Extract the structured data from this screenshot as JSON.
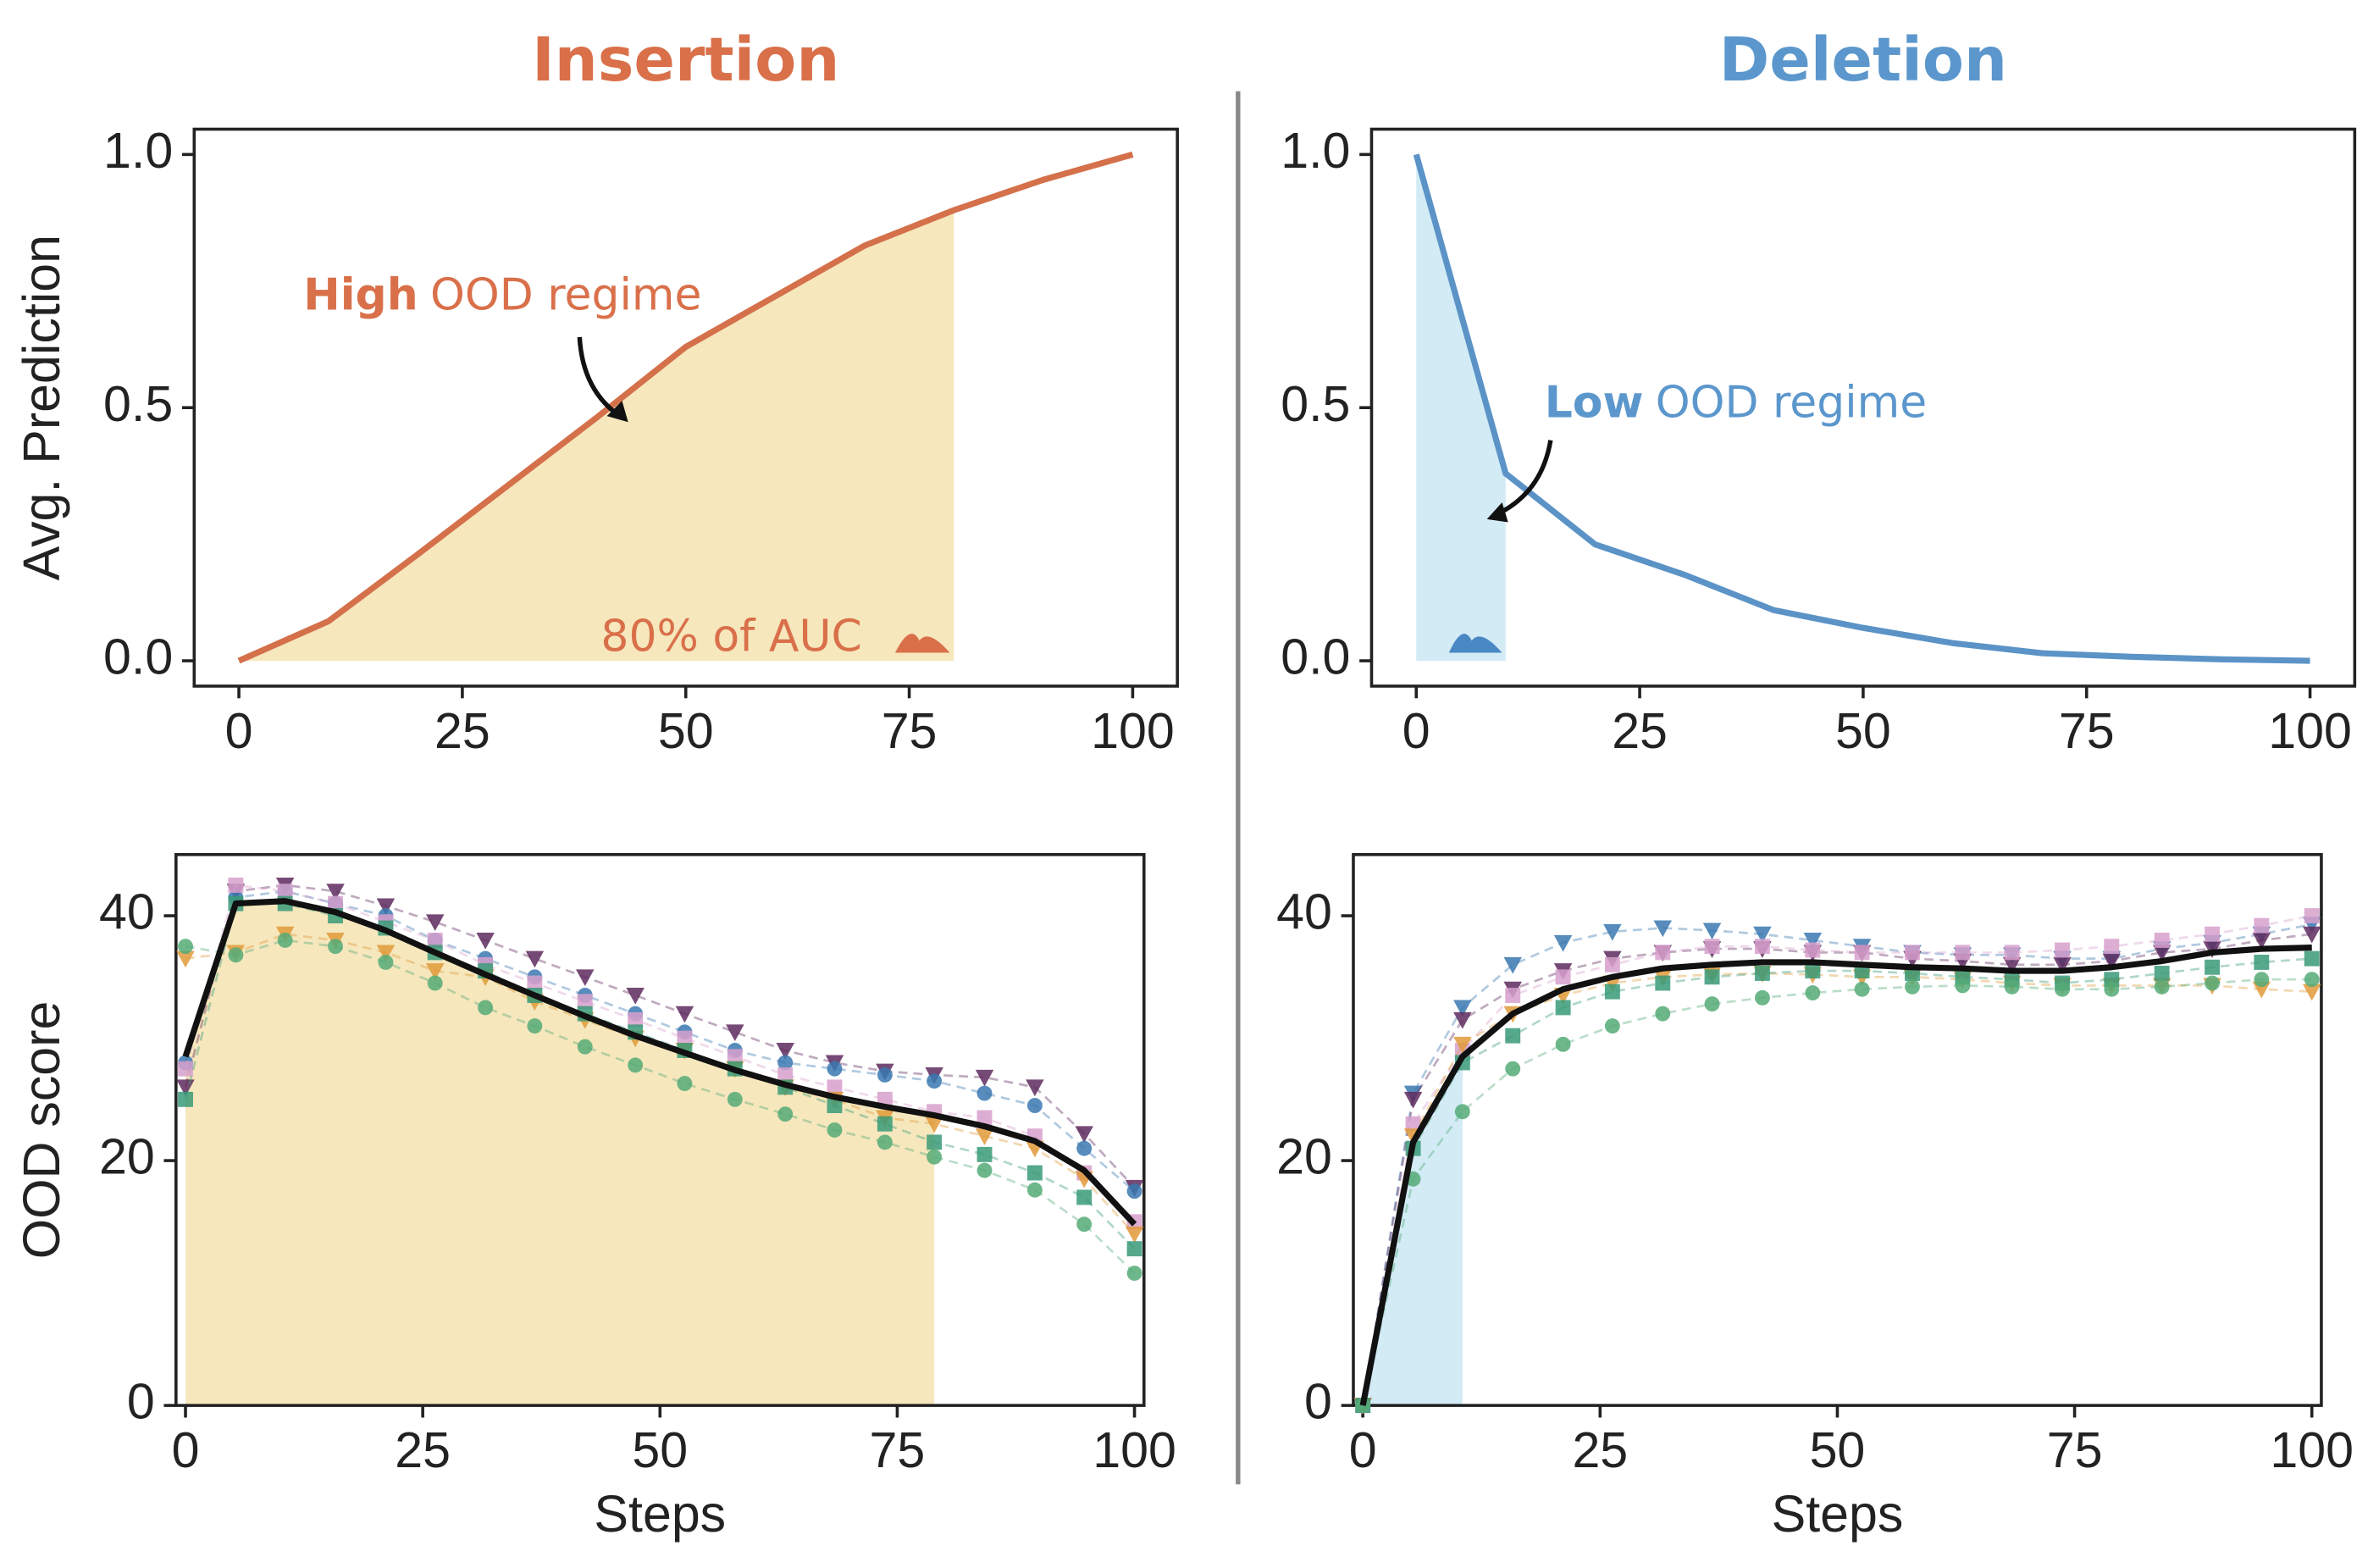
{
  "chart_data": [
    {
      "type": "line",
      "title": "Insertion",
      "title_color": "#d9704a",
      "ylabel": "Avg. Prediction",
      "x": [
        0,
        10,
        20,
        30,
        40,
        50,
        60,
        70,
        80,
        90,
        100
      ],
      "series": [
        {
          "color": "#d4704a",
          "values": [
            0,
            0.078,
            0.21,
            0.345,
            0.48,
            0.62,
            0.72,
            0.82,
            0.89,
            0.95,
            1.0
          ],
          "dashed": false
        }
      ],
      "shade": {
        "xlim": [
          0,
          80
        ],
        "color": "#f6e7bd"
      },
      "annotation": {
        "bold": "High",
        "text": "OOD regime",
        "color": "#d9704a"
      },
      "auc_label": "80% of AUC",
      "xlim": [
        -5,
        105
      ],
      "ylim": [
        -0.05,
        1.05
      ],
      "xticks": [
        0,
        25,
        50,
        75,
        100
      ],
      "yticks": [
        {
          "value": 0,
          "label": "0.0"
        },
        {
          "value": 0.5,
          "label": "0.5"
        },
        {
          "value": 1,
          "label": "1.0"
        }
      ]
    },
    {
      "type": "line",
      "title": "Deletion",
      "title_color": "#5b97cc",
      "x": [
        0,
        10,
        20,
        30,
        40,
        50,
        60,
        70,
        80,
        90,
        100
      ],
      "series": [
        {
          "color": "#5b93c7",
          "values": [
            1.0,
            0.37,
            0.23,
            0.17,
            0.1,
            0.065,
            0.035,
            0.015,
            0.008,
            0.003,
            0.0
          ],
          "dashed": false
        }
      ],
      "shade": {
        "xlim": [
          0,
          10
        ],
        "color": "#d2ebf5"
      },
      "annotation": {
        "bold": "Low",
        "text": "OOD regime",
        "color": "#5b97cc"
      },
      "xlim": [
        -5,
        105
      ],
      "ylim": [
        -0.05,
        1.05
      ],
      "xticks": [
        0,
        25,
        50,
        75,
        100
      ],
      "yticks": [
        {
          "value": 0,
          "label": "0.0"
        },
        {
          "value": 0.5,
          "label": "0.5"
        },
        {
          "value": 1,
          "label": "1.0"
        }
      ]
    },
    {
      "type": "line",
      "ylabel": "OOD score",
      "xlabel": "Steps",
      "x": [
        0,
        5.3,
        10.5,
        15.8,
        21.1,
        26.3,
        31.6,
        36.8,
        42.1,
        47.4,
        52.6,
        57.9,
        63.2,
        68.4,
        73.7,
        78.9,
        84.2,
        89.5,
        94.7,
        100
      ],
      "series": [
        {
          "color": "#5e2a5e",
          "marker": "tri",
          "dashed": true,
          "values": [
            26,
            42,
            42.5,
            42,
            40.8,
            39.5,
            38,
            36.5,
            35,
            33.5,
            32,
            30.5,
            29,
            28,
            27.3,
            27,
            26.8,
            26,
            22.2,
            17.8
          ]
        },
        {
          "color": "#3a78b0",
          "marker": "circle",
          "dashed": true,
          "values": [
            28,
            41.5,
            42,
            41,
            40,
            38,
            36.5,
            35,
            33.5,
            32,
            30.5,
            29,
            28,
            27.5,
            27,
            26.5,
            25.5,
            24.5,
            21,
            17.5
          ]
        },
        {
          "color": "#d7a0cc",
          "marker": "square",
          "dashed": true,
          "values": [
            27.5,
            42.5,
            42,
            41,
            39.5,
            38,
            36,
            34.5,
            33,
            31.5,
            30,
            28.5,
            27,
            26,
            25,
            24,
            23.5,
            22,
            19,
            15
          ]
        },
        {
          "color": "#e09a3a",
          "marker": "tri",
          "dashed": true,
          "values": [
            36.5,
            37,
            38.5,
            38,
            37,
            35.5,
            35,
            33,
            31.5,
            30,
            29,
            27.5,
            26,
            25,
            23.5,
            23,
            22,
            21,
            18.5,
            14
          ]
        },
        {
          "color": "#3a9a78",
          "marker": "square",
          "dashed": true,
          "values": [
            25,
            41,
            41,
            40,
            39,
            37,
            35.5,
            33.5,
            32,
            30.5,
            29,
            27.5,
            26,
            24.5,
            23,
            21.5,
            20.5,
            19,
            17,
            12.8
          ]
        },
        {
          "color": "#55aa77",
          "marker": "circle",
          "dashed": true,
          "values": [
            37.5,
            36.8,
            38,
            37.5,
            36.2,
            34.5,
            32.5,
            31,
            29.3,
            27.8,
            26.3,
            25,
            23.8,
            22.5,
            21.5,
            20.3,
            19.2,
            17.6,
            14.8,
            10.8
          ]
        },
        {
          "color": "#111111",
          "dashed": false,
          "values": [
            28.5,
            41,
            41.2,
            40.3,
            38.8,
            37,
            35.2,
            33.5,
            31.8,
            30.2,
            28.8,
            27.4,
            26.2,
            25.2,
            24.4,
            23.7,
            22.8,
            21.6,
            19.2,
            14.8
          ]
        }
      ],
      "shade": {
        "xlim": [
          0,
          78.9
        ],
        "color": "#f6e7bd"
      },
      "xlim": [
        -1,
        101
      ],
      "ylim": [
        0,
        45
      ],
      "xticks": [
        0,
        25,
        50,
        75,
        100
      ],
      "yticks": [
        0,
        20,
        40
      ]
    },
    {
      "type": "line",
      "xlabel": "Steps",
      "x": [
        0,
        5.3,
        10.5,
        15.8,
        21.1,
        26.3,
        31.6,
        36.8,
        42.1,
        47.4,
        52.6,
        57.9,
        63.2,
        68.4,
        73.7,
        78.9,
        84.2,
        89.5,
        94.7,
        100
      ],
      "series": [
        {
          "color": "#3a78b0",
          "marker": "tri",
          "dashed": true,
          "values": [
            0,
            25.5,
            32.5,
            36,
            37.8,
            38.7,
            39,
            38.8,
            38.5,
            38,
            37.5,
            37,
            36.8,
            36.8,
            36.5,
            36.5,
            37.3,
            37.8,
            38.5,
            39.3
          ]
        },
        {
          "color": "#5e2a5e",
          "marker": "tri",
          "dashed": true,
          "values": [
            0,
            25,
            31.5,
            34,
            35.5,
            36.5,
            37,
            37.3,
            37.3,
            37,
            37,
            36.5,
            36.3,
            36,
            36,
            36.3,
            37,
            37.3,
            38,
            38.5
          ]
        },
        {
          "color": "#d7a0cc",
          "marker": "square",
          "dashed": true,
          "values": [
            0,
            23,
            29,
            33.5,
            35,
            36,
            37,
            37.5,
            37.5,
            37.2,
            37,
            37,
            37,
            37,
            37.2,
            37.5,
            38,
            38.5,
            39.2,
            40
          ]
        },
        {
          "color": "#e09a3a",
          "marker": "tri",
          "dashed": true,
          "values": [
            0,
            22,
            29.5,
            32,
            33.5,
            34.5,
            35,
            35.2,
            35.3,
            35.2,
            35,
            35,
            34.8,
            34.5,
            34.3,
            34.3,
            34.3,
            34.3,
            34,
            33.8
          ]
        },
        {
          "color": "#3a9a78",
          "marker": "square",
          "dashed": true,
          "values": [
            0,
            21,
            28,
            30.2,
            32.5,
            33.8,
            34.5,
            35,
            35.3,
            35.5,
            35.5,
            35.3,
            35,
            34.8,
            34.5,
            34.8,
            35.3,
            35.8,
            36.2,
            36.5
          ]
        },
        {
          "color": "#55aa77",
          "marker": "circle",
          "dashed": true,
          "values": [
            0,
            18.5,
            24,
            27.5,
            29.5,
            31,
            32,
            32.8,
            33.3,
            33.7,
            34,
            34.2,
            34.3,
            34.2,
            34,
            34,
            34.2,
            34.5,
            34.8,
            34.8
          ]
        },
        {
          "color": "#111111",
          "dashed": false,
          "values": [
            0,
            21.5,
            28.5,
            32,
            34,
            35,
            35.7,
            36,
            36.2,
            36.2,
            36,
            35.8,
            35.7,
            35.5,
            35.5,
            35.8,
            36.3,
            37,
            37.3,
            37.4
          ]
        }
      ],
      "shade": {
        "xlim": [
          0,
          10.5
        ],
        "color": "#d2ebf5"
      },
      "xlim": [
        -1,
        101
      ],
      "ylim": [
        0,
        45
      ],
      "xticks": [
        0,
        25,
        50,
        75,
        100
      ],
      "yticks": [
        0,
        20,
        40
      ]
    }
  ]
}
